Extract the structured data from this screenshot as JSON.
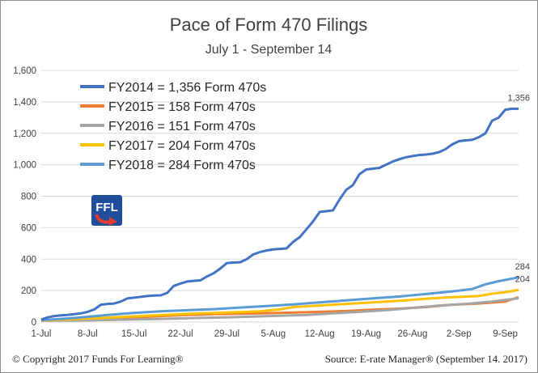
{
  "chart_data": {
    "type": "line",
    "title": "Pace of Form 470 Filings",
    "subtitle": "July 1 - September 14",
    "xlabel": "",
    "ylabel": "",
    "ylim": [
      0,
      1600
    ],
    "yticks": [
      "0",
      "200",
      "400",
      "600",
      "800",
      "1,000",
      "1,200",
      "1,400",
      "1,600"
    ],
    "xticks": [
      "1-Jul",
      "8-Jul",
      "15-Jul",
      "22-Jul",
      "29-Jul",
      "5-Aug",
      "12-Aug",
      "19-Aug",
      "26-Aug",
      "2-Sep",
      "9-Sep"
    ],
    "grid": "horizontal",
    "legend_position": "top-left",
    "series": [
      {
        "name": "FY2014",
        "legend": "FY2014 =  1,356 Form 470s",
        "color": "#4472C4",
        "end_label": "1,356",
        "points": [
          [
            0,
            15
          ],
          [
            1,
            30
          ],
          [
            2,
            38
          ],
          [
            3,
            42
          ],
          [
            4,
            45
          ],
          [
            5,
            50
          ],
          [
            6,
            55
          ],
          [
            7,
            65
          ],
          [
            8,
            80
          ],
          [
            9,
            110
          ],
          [
            10,
            115
          ],
          [
            11,
            118
          ],
          [
            12,
            130
          ],
          [
            13,
            150
          ],
          [
            14,
            155
          ],
          [
            15,
            160
          ],
          [
            16,
            165
          ],
          [
            17,
            168
          ],
          [
            18,
            170
          ],
          [
            19,
            185
          ],
          [
            20,
            230
          ],
          [
            21,
            245
          ],
          [
            22,
            258
          ],
          [
            23,
            262
          ],
          [
            24,
            265
          ],
          [
            25,
            290
          ],
          [
            26,
            310
          ],
          [
            27,
            340
          ],
          [
            28,
            375
          ],
          [
            29,
            378
          ],
          [
            30,
            380
          ],
          [
            31,
            400
          ],
          [
            32,
            430
          ],
          [
            33,
            445
          ],
          [
            34,
            455
          ],
          [
            35,
            462
          ],
          [
            36,
            465
          ],
          [
            37,
            468
          ],
          [
            38,
            510
          ],
          [
            39,
            540
          ],
          [
            40,
            590
          ],
          [
            41,
            640
          ],
          [
            42,
            700
          ],
          [
            43,
            705
          ],
          [
            44,
            710
          ],
          [
            45,
            780
          ],
          [
            46,
            840
          ],
          [
            47,
            870
          ],
          [
            48,
            940
          ],
          [
            49,
            970
          ],
          [
            50,
            975
          ],
          [
            51,
            980
          ],
          [
            52,
            1000
          ],
          [
            53,
            1020
          ],
          [
            54,
            1035
          ],
          [
            55,
            1048
          ],
          [
            56,
            1055
          ],
          [
            57,
            1062
          ],
          [
            58,
            1065
          ],
          [
            59,
            1070
          ],
          [
            60,
            1080
          ],
          [
            61,
            1100
          ],
          [
            62,
            1130
          ],
          [
            63,
            1150
          ],
          [
            64,
            1155
          ],
          [
            65,
            1158
          ],
          [
            66,
            1175
          ],
          [
            67,
            1200
          ],
          [
            68,
            1280
          ],
          [
            69,
            1300
          ],
          [
            70,
            1350
          ],
          [
            71,
            1356
          ],
          [
            72,
            1356
          ]
        ]
      },
      {
        "name": "FY2015",
        "legend": "FY2015 =     158 Form 470s",
        "color": "#ED7D31",
        "end_label": "",
        "points": [
          [
            0,
            10
          ],
          [
            2,
            12
          ],
          [
            6,
            15
          ],
          [
            10,
            22
          ],
          [
            14,
            30
          ],
          [
            18,
            38
          ],
          [
            22,
            45
          ],
          [
            26,
            50
          ],
          [
            30,
            53
          ],
          [
            34,
            56
          ],
          [
            38,
            60
          ],
          [
            42,
            65
          ],
          [
            46,
            70
          ],
          [
            50,
            78
          ],
          [
            54,
            85
          ],
          [
            58,
            95
          ],
          [
            62,
            110
          ],
          [
            66,
            118
          ],
          [
            70,
            130
          ],
          [
            72,
            158
          ]
        ]
      },
      {
        "name": "FY2016",
        "legend": "FY2016 =     151 Form 470s",
        "color": "#A5A5A5",
        "end_label": "",
        "points": [
          [
            0,
            8
          ],
          [
            4,
            10
          ],
          [
            8,
            12
          ],
          [
            12,
            15
          ],
          [
            16,
            18
          ],
          [
            20,
            22
          ],
          [
            24,
            26
          ],
          [
            28,
            30
          ],
          [
            32,
            35
          ],
          [
            36,
            40
          ],
          [
            40,
            45
          ],
          [
            44,
            55
          ],
          [
            48,
            65
          ],
          [
            52,
            75
          ],
          [
            56,
            90
          ],
          [
            60,
            105
          ],
          [
            64,
            115
          ],
          [
            68,
            130
          ],
          [
            72,
            151
          ]
        ]
      },
      {
        "name": "FY2017",
        "legend": "FY2017 =     204 Form 470s",
        "color": "#FFC000",
        "end_label": "204",
        "points": [
          [
            0,
            10
          ],
          [
            3,
            15
          ],
          [
            6,
            20
          ],
          [
            10,
            28
          ],
          [
            14,
            36
          ],
          [
            18,
            44
          ],
          [
            22,
            52
          ],
          [
            26,
            58
          ],
          [
            30,
            63
          ],
          [
            33,
            68
          ],
          [
            36,
            80
          ],
          [
            38,
            95
          ],
          [
            42,
            105
          ],
          [
            46,
            115
          ],
          [
            50,
            125
          ],
          [
            54,
            135
          ],
          [
            58,
            148
          ],
          [
            62,
            158
          ],
          [
            66,
            165
          ],
          [
            68,
            180
          ],
          [
            70,
            190
          ],
          [
            72,
            204
          ]
        ]
      },
      {
        "name": "FY2018",
        "legend": "FY2018 =     284 Form 470s",
        "color": "#5B9BD5",
        "end_label": "284",
        "points": [
          [
            0,
            12
          ],
          [
            3,
            20
          ],
          [
            6,
            30
          ],
          [
            10,
            45
          ],
          [
            14,
            58
          ],
          [
            18,
            68
          ],
          [
            22,
            75
          ],
          [
            26,
            82
          ],
          [
            30,
            92
          ],
          [
            34,
            102
          ],
          [
            38,
            112
          ],
          [
            42,
            125
          ],
          [
            46,
            138
          ],
          [
            50,
            150
          ],
          [
            54,
            162
          ],
          [
            58,
            178
          ],
          [
            62,
            195
          ],
          [
            65,
            210
          ],
          [
            67,
            240
          ],
          [
            69,
            260
          ],
          [
            72,
            284
          ]
        ]
      }
    ]
  },
  "logo": {
    "text": "FFL",
    "colors": {
      "blue": "#1F4E9C",
      "red": "#E03C31"
    }
  },
  "footer": {
    "copyright": "© Copyright 2017 Funds For Learning®",
    "source": "Source: E-rate Manager® (September 14. 2017)"
  }
}
